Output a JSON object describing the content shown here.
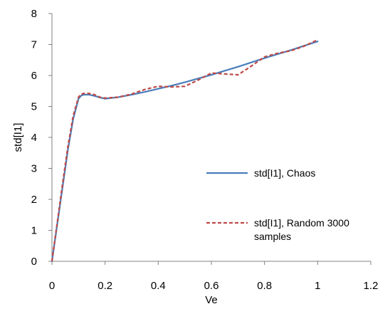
{
  "chart_data": {
    "type": "line",
    "title": "",
    "xlabel": "Ve",
    "ylabel": "std[I1]",
    "xlim": [
      0,
      1.2
    ],
    "ylim": [
      0,
      8
    ],
    "x_ticks": [
      "0",
      "0.2",
      "0.4",
      "0.6",
      "0.8",
      "1",
      "1.2"
    ],
    "y_ticks": [
      "0",
      "1",
      "2",
      "3",
      "4",
      "5",
      "6",
      "7",
      "8"
    ],
    "grid": false,
    "legend_position": "right",
    "series": [
      {
        "name": "std[I1], Chaos",
        "color": "#4A7EBB",
        "style": "solid",
        "x": [
          0,
          0.02,
          0.04,
          0.06,
          0.08,
          0.1,
          0.11,
          0.12,
          0.14,
          0.16,
          0.18,
          0.2,
          0.25,
          0.3,
          0.35,
          0.4,
          0.45,
          0.5,
          0.55,
          0.6,
          0.65,
          0.7,
          0.75,
          0.8,
          0.85,
          0.9,
          0.95,
          1.0
        ],
        "y": [
          0,
          1.2,
          2.4,
          3.6,
          4.6,
          5.25,
          5.35,
          5.38,
          5.38,
          5.34,
          5.29,
          5.25,
          5.3,
          5.38,
          5.47,
          5.57,
          5.67,
          5.78,
          5.9,
          6.02,
          6.15,
          6.28,
          6.42,
          6.56,
          6.69,
          6.82,
          6.96,
          7.1
        ]
      },
      {
        "name": "std[I1], Random 3000 samples",
        "color": "#BE4B48",
        "style": "dashed",
        "x": [
          0,
          0.02,
          0.04,
          0.06,
          0.08,
          0.1,
          0.11,
          0.12,
          0.14,
          0.16,
          0.18,
          0.2,
          0.25,
          0.3,
          0.35,
          0.4,
          0.45,
          0.5,
          0.55,
          0.6,
          0.65,
          0.7,
          0.75,
          0.8,
          0.85,
          0.9,
          0.95,
          1.0
        ],
        "y": [
          0,
          1.25,
          2.5,
          3.7,
          4.7,
          5.3,
          5.4,
          5.42,
          5.42,
          5.38,
          5.3,
          5.27,
          5.3,
          5.4,
          5.55,
          5.65,
          5.63,
          5.65,
          5.85,
          6.08,
          6.05,
          6.02,
          6.3,
          6.6,
          6.72,
          6.8,
          6.95,
          7.15
        ]
      }
    ]
  }
}
